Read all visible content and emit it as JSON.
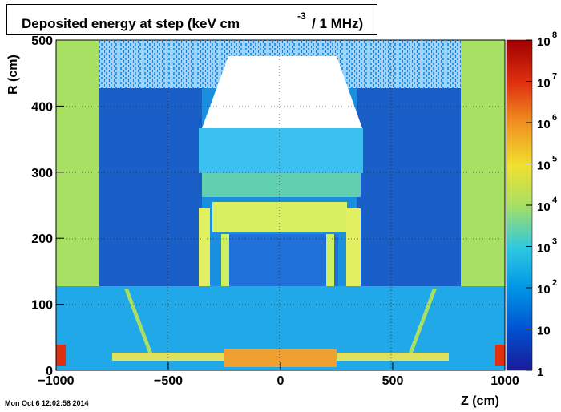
{
  "chart_data": {
    "type": "heatmap",
    "title": "Deposited energy at step (keV cm",
    "title_superscript": "-3",
    "title_suffix": "/ 1 MHz)",
    "xlabel": "Z (cm)",
    "ylabel": "R (cm)",
    "xlim": [
      -1000,
      1000
    ],
    "ylim": [
      0,
      500
    ],
    "x_ticks": [
      "−1000",
      "−500",
      "0",
      "500",
      "1000"
    ],
    "y_ticks": [
      "0",
      "100",
      "200",
      "300",
      "400",
      "500"
    ],
    "grid": true,
    "colorbar": {
      "scale": "log",
      "range": [
        1,
        100000000
      ],
      "tick_labels": [
        "1",
        "10",
        "10",
        "10",
        "10",
        "10",
        "10",
        "10",
        "10"
      ],
      "tick_exponents": [
        "",
        "",
        "2",
        "3",
        "4",
        "5",
        "6",
        "7",
        "8"
      ],
      "colors": [
        "#1a1a99",
        "#0050d0",
        "#0096e6",
        "#2ec8e0",
        "#a8e064",
        "#f0e030",
        "#f09020",
        "#e03010",
        "#a00000"
      ]
    }
  },
  "footer": {
    "timestamp": "Mon Oct  6 12:02:58 2014"
  }
}
